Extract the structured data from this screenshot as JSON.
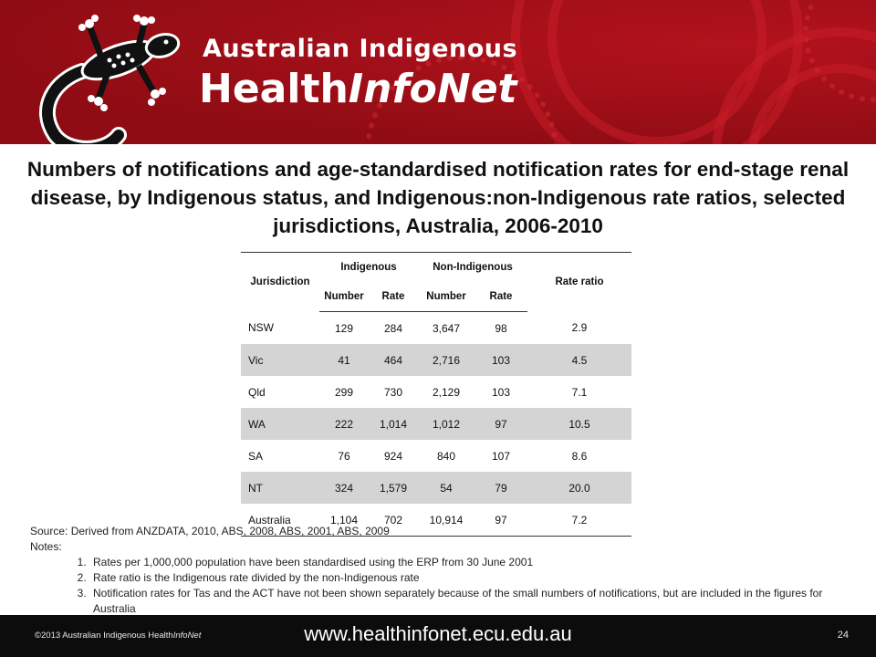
{
  "header": {
    "brand_line1": "Australian Indigenous",
    "brand_line2_a": "Health",
    "brand_line2_b": "InfoNet"
  },
  "title": "Numbers of notifications and age-standardised notification rates for end-stage renal disease, by Indigenous status, and Indigenous:non-Indigenous rate ratios, selected jurisdictions, Australia, 2006-2010",
  "table": {
    "headers": {
      "jurisdiction": "Jurisdiction",
      "indigenous": "Indigenous",
      "non_indigenous": "Non-Indigenous",
      "rate_ratio": "Rate ratio",
      "number": "Number",
      "rate": "Rate"
    },
    "rows": [
      {
        "jurisdiction": "NSW",
        "ind_number": "129",
        "ind_rate": "284",
        "non_number": "3,647",
        "non_rate": "98",
        "ratio": "2.9"
      },
      {
        "jurisdiction": "Vic",
        "ind_number": "41",
        "ind_rate": "464",
        "non_number": "2,716",
        "non_rate": "103",
        "ratio": "4.5"
      },
      {
        "jurisdiction": "Qld",
        "ind_number": "299",
        "ind_rate": "730",
        "non_number": "2,129",
        "non_rate": "103",
        "ratio": "7.1"
      },
      {
        "jurisdiction": "WA",
        "ind_number": "222",
        "ind_rate": "1,014",
        "non_number": "1,012",
        "non_rate": "97",
        "ratio": "10.5"
      },
      {
        "jurisdiction": "SA",
        "ind_number": "76",
        "ind_rate": "924",
        "non_number": "840",
        "non_rate": "107",
        "ratio": "8.6"
      },
      {
        "jurisdiction": "NT",
        "ind_number": "324",
        "ind_rate": "1,579",
        "non_number": "54",
        "non_rate": "79",
        "ratio": "20.0"
      },
      {
        "jurisdiction": "Australia",
        "ind_number": "1,104",
        "ind_rate": "702",
        "non_number": "10,914",
        "non_rate": "97",
        "ratio": "7.2"
      }
    ]
  },
  "notes": {
    "source": "Source: Derived from ANZDATA, 2010, ABS, 2008, ABS, 2001, ABS, 2009",
    "label": "Notes:",
    "items": [
      "Rates per 1,000,000 population have been standardised using the ERP from 30 June 2001",
      "Rate ratio is the Indigenous rate divided by the non-Indigenous rate",
      "Notification rates for Tas and the ACT have not been shown separately because of the small numbers of notifications, but are included in the figures for Australia"
    ]
  },
  "footer": {
    "copyright_a": "©2013 Australian Indigenous Health",
    "copyright_b": "InfoNet",
    "url": "www.healthinfonet.ecu.edu.au",
    "page_number": "24"
  },
  "colors": {
    "banner_red": "#a10f18",
    "footer_black": "#0c0c0c",
    "row_shade": "#d4d4d4"
  }
}
